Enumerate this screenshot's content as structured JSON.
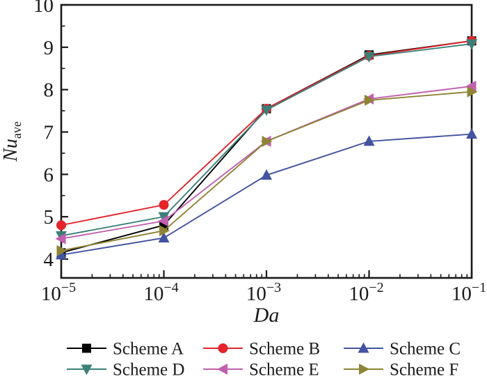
{
  "figure": {
    "background": "#ffffff",
    "text_color": "#1a1a1a"
  },
  "chart_data": {
    "type": "line",
    "title": "",
    "x_axis": {
      "label": "Da",
      "scale": "log",
      "range_log10": [
        -5,
        -1
      ],
      "ticks": [
        {
          "base": "10",
          "exp": "-5",
          "value": 1e-05
        },
        {
          "base": "10",
          "exp": "-4",
          "value": 0.0001
        },
        {
          "base": "10",
          "exp": "-3",
          "value": 0.001
        },
        {
          "base": "10",
          "exp": "-2",
          "value": 0.01
        },
        {
          "base": "10",
          "exp": "-1",
          "value": 0.1
        }
      ],
      "minor_tick_style": "log-decade-2-to-9"
    },
    "y_axis": {
      "label_main": "Nu",
      "label_sub": "ave",
      "ticks": [
        4,
        5,
        6,
        7,
        8,
        9,
        10
      ],
      "minor_tick_step": 0.5,
      "range": [
        4,
        10
      ]
    },
    "x_values": [
      1e-05,
      0.0001,
      0.001,
      0.01,
      0.1
    ],
    "series": [
      {
        "name": "Scheme A",
        "color": "#000000",
        "marker": "square",
        "values": [
          4.15,
          4.8,
          7.55,
          8.82,
          9.15
        ]
      },
      {
        "name": "Scheme B",
        "color": "#e4232a",
        "marker": "circle",
        "values": [
          4.8,
          5.28,
          7.55,
          8.8,
          9.15
        ]
      },
      {
        "name": "Scheme C",
        "color": "#4253a0",
        "marker": "triangle-up",
        "values": [
          4.1,
          4.5,
          5.98,
          6.78,
          6.95
        ]
      },
      {
        "name": "Scheme D",
        "color": "#3a8078",
        "marker": "triangle-down",
        "values": [
          4.55,
          5.0,
          7.52,
          8.78,
          9.08
        ]
      },
      {
        "name": "Scheme E",
        "color": "#c060ae",
        "marker": "triangle-left",
        "values": [
          4.48,
          4.9,
          6.78,
          7.78,
          8.08
        ]
      },
      {
        "name": "Scheme F",
        "color": "#8e8434",
        "marker": "triangle-right",
        "values": [
          4.2,
          4.67,
          6.78,
          7.75,
          7.95
        ]
      }
    ],
    "legend": {
      "position": "bottom",
      "rows": 2,
      "columns": 3,
      "order": [
        "Scheme A",
        "Scheme B",
        "Scheme C",
        "Scheme D",
        "Scheme E",
        "Scheme F"
      ]
    }
  }
}
